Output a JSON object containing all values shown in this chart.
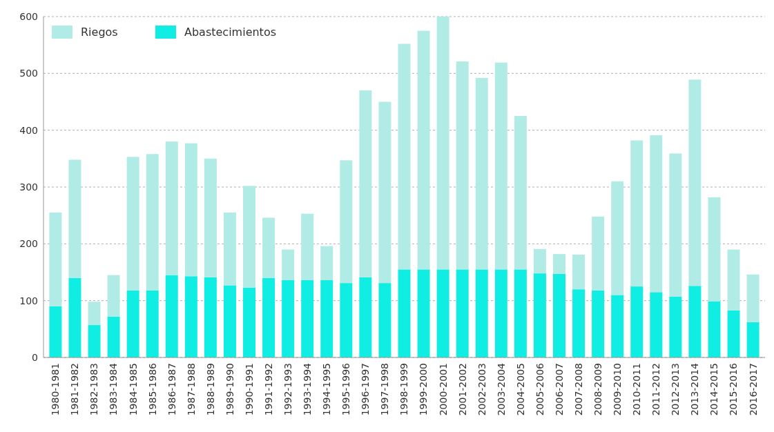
{
  "chart_data": {
    "type": "bar",
    "stacked": true,
    "categories": [
      "1980-1981",
      "1981-1982",
      "1982-1983",
      "1983-1984",
      "1984-1985",
      "1985-1986",
      "1986-1987",
      "1987-1988",
      "1988-1989",
      "1989-1990",
      "1990-1991",
      "1991-1992",
      "1992-1993",
      "1993-1994",
      "1994-1995",
      "1995-1996",
      "1996-1997",
      "1997-1998",
      "1998-1999",
      "1999-2000",
      "2000-2001",
      "2001-2002",
      "2002-2003",
      "2003-2004",
      "2004-2005",
      "2005-2006",
      "2006-2007",
      "2007-2008",
      "2008-2009",
      "2009-2010",
      "2010-2011",
      "2011-2012",
      "2012-2013",
      "2013-2014",
      "2014-2015",
      "2015-2016",
      "2016-2017"
    ],
    "series": [
      {
        "name": "Abastecimientos",
        "color": "#10ede3",
        "values": [
          90,
          140,
          57,
          72,
          118,
          118,
          145,
          143,
          141,
          127,
          123,
          140,
          136,
          136,
          136,
          131,
          141,
          131,
          155,
          155,
          155,
          155,
          155,
          155,
          155,
          148,
          147,
          120,
          118,
          110,
          125,
          115,
          107,
          126,
          99,
          83,
          62
        ]
      },
      {
        "name": "Riegos",
        "color": "#b0ebe5",
        "values": [
          165,
          208,
          41,
          73,
          235,
          240,
          235,
          234,
          209,
          128,
          179,
          106,
          54,
          117,
          60,
          216,
          329,
          319,
          397,
          420,
          445,
          366,
          337,
          364,
          270,
          43,
          35,
          61,
          130,
          200,
          257,
          276,
          252,
          363,
          183,
          107,
          84
        ]
      }
    ],
    "ylim": [
      0,
      600
    ],
    "yticks": [
      0,
      100,
      200,
      300,
      400,
      500,
      600
    ],
    "grid": "y",
    "legend": "top left"
  }
}
